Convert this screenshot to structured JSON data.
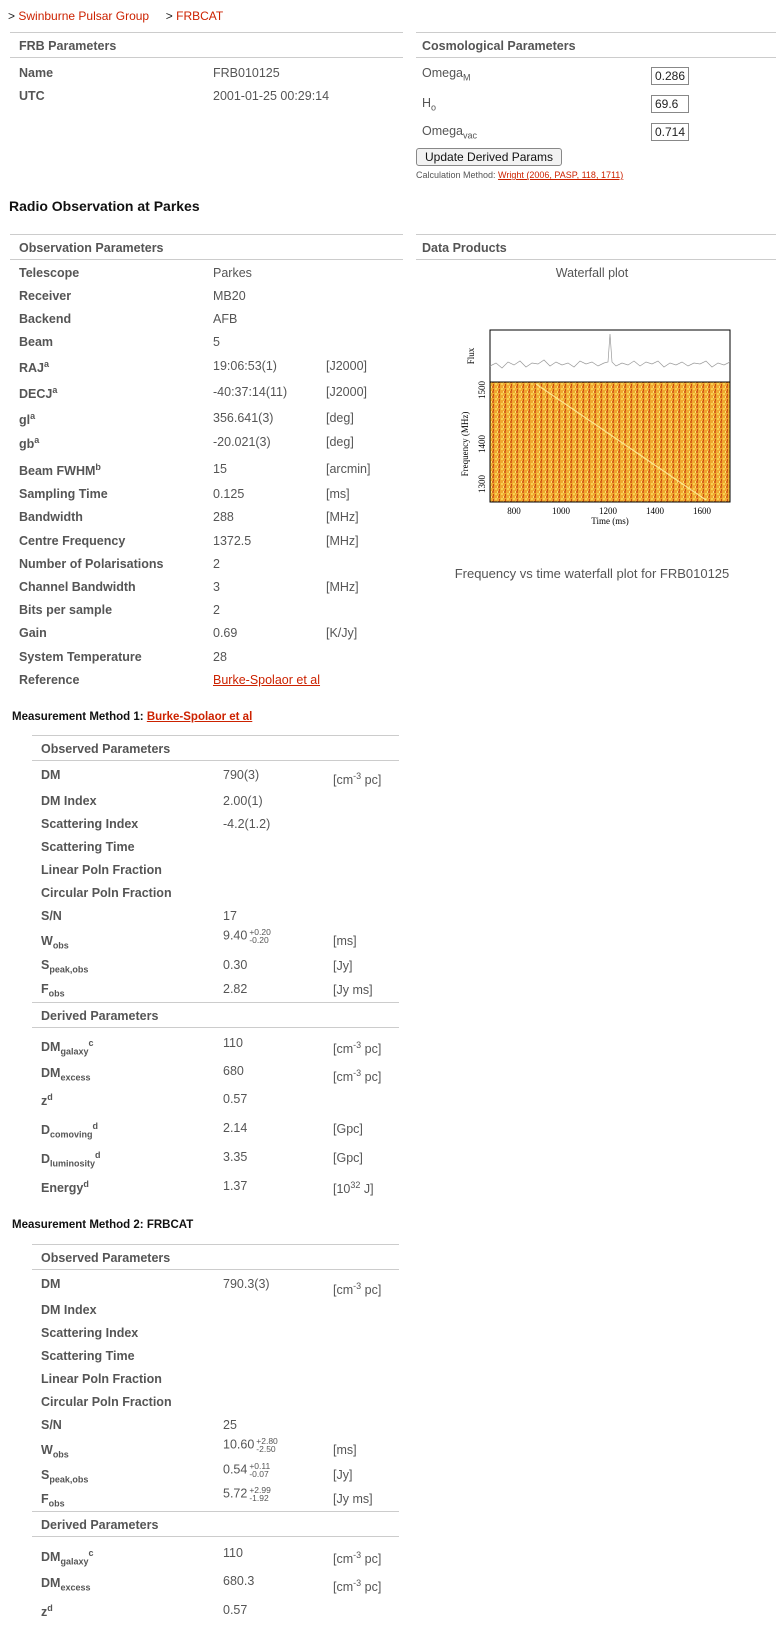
{
  "breadcrumb": {
    "sep": ">",
    "item1": "Swinburne Pulsar Group",
    "item2": "FRBCAT"
  },
  "frb": {
    "header": "FRB Parameters",
    "name_label": "Name",
    "name_value": "FRB010125",
    "utc_label": "UTC",
    "utc_value": "2001-01-25 00:29:14"
  },
  "cosmo": {
    "header": "Cosmological Parameters",
    "omega_m_label": "Omega",
    "omega_m_sub": "M",
    "omega_m_value": "0.286",
    "h0_label": "H",
    "h0_sub": "o",
    "h0_value": "69.6",
    "omega_vac_label": "Omega",
    "omega_vac_sub": "vac",
    "omega_vac_value": "0.714",
    "button": "Update Derived Params",
    "calc_prefix": "Calculation Method: ",
    "calc_link": "Wright (2006, PASP, 118, 1711)"
  },
  "radio_heading": "Radio Observation at Parkes",
  "obs": {
    "header": "Observation Parameters",
    "rows": [
      {
        "label": "Telescope",
        "sup": "",
        "value": "Parkes",
        "unit": ""
      },
      {
        "label": "Receiver",
        "sup": "",
        "value": "MB20",
        "unit": ""
      },
      {
        "label": "Backend",
        "sup": "",
        "value": "AFB",
        "unit": ""
      },
      {
        "label": "Beam",
        "sup": "",
        "value": "5",
        "unit": ""
      },
      {
        "label": "RAJ",
        "sup": "a",
        "value": "19:06:53(1)",
        "unit": "[J2000]"
      },
      {
        "label": "DECJ",
        "sup": "a",
        "value": "-40:37:14(11)",
        "unit": "[J2000]"
      },
      {
        "label": "gl",
        "sup": "a",
        "value": "356.641(3)",
        "unit": "[deg]"
      },
      {
        "label": "gb",
        "sup": "a",
        "value": "-20.021(3)",
        "unit": "[deg]"
      },
      {
        "label": "Beam FWHM",
        "sup": "b",
        "value": "15",
        "unit": "[arcmin]"
      },
      {
        "label": "Sampling Time",
        "sup": "",
        "value": "0.125",
        "unit": "[ms]"
      },
      {
        "label": "Bandwidth",
        "sup": "",
        "value": "288",
        "unit": "[MHz]"
      },
      {
        "label": "Centre Frequency",
        "sup": "",
        "value": "1372.5",
        "unit": "[MHz]"
      },
      {
        "label": "Number of Polarisations",
        "sup": "",
        "value": "2",
        "unit": ""
      },
      {
        "label": "Channel Bandwidth",
        "sup": "",
        "value": "3",
        "unit": "[MHz]"
      },
      {
        "label": "Bits per sample",
        "sup": "",
        "value": "2",
        "unit": ""
      },
      {
        "label": "Gain",
        "sup": "",
        "value": "0.69",
        "unit": "[K/Jy]"
      },
      {
        "label": "System Temperature",
        "sup": "",
        "value": "28",
        "unit": ""
      },
      {
        "label": "Reference",
        "sup": "",
        "value": "Burke-Spolaor et al",
        "unit": "",
        "link": true
      }
    ]
  },
  "dataproducts": {
    "header": "Data Products",
    "title": "Waterfall plot",
    "caption": "Frequency vs time waterfall plot for FRB010125",
    "flux_label": "Flux",
    "ylabel": "Frequency (MHz)",
    "xlabel": "Time (ms)",
    "yticks": [
      "1300",
      "1400",
      "1500"
    ],
    "xticks": [
      "800",
      "1000",
      "1200",
      "1400",
      "1600"
    ]
  },
  "mm1": {
    "heading_prefix": "Measurement Method 1: ",
    "heading_link": "Burke-Spolaor et al",
    "observed_header": "Observed Parameters",
    "derived_header": "Derived Parameters",
    "dm_label": "DM",
    "dm_value": "790(3)",
    "dmidx_label": "DM Index",
    "dmidx_value": "2.00(1)",
    "scatidx_label": "Scattering Index",
    "scatidx_value": "-4.2(1.2)",
    "scattime_label": "Scattering Time",
    "linpol_label": "Linear Poln Fraction",
    "circpol_label": "Circular Poln Fraction",
    "sn_label": "S/N",
    "sn_value": "17",
    "wobs_value": "9.40",
    "wobs_plus": "+0.20",
    "wobs_minus": "-0.20",
    "speak_value": "0.30",
    "fobs_value": "2.82",
    "dmgal_value": "110",
    "dmexc_value": "680",
    "z_value": "0.57",
    "dcom_value": "2.14",
    "dlum_value": "3.35",
    "energy_value": "1.37"
  },
  "mm2": {
    "heading": "Measurement Method 2: FRBCAT",
    "observed_header": "Observed Parameters",
    "derived_header": "Derived Parameters",
    "dm_label": "DM",
    "dm_value": "790.3(3)",
    "dmidx_label": "DM Index",
    "scatidx_label": "Scattering Index",
    "scattime_label": "Scattering Time",
    "linpol_label": "Linear Poln Fraction",
    "circpol_label": "Circular Poln Fraction",
    "sn_label": "S/N",
    "sn_value": "25",
    "wobs_value": "10.60",
    "wobs_plus": "+2.80",
    "wobs_minus": "-2.50",
    "speak_value": "0.54",
    "speak_plus": "+0.11",
    "speak_minus": "-0.07",
    "fobs_value": "5.72",
    "fobs_plus": "+2.99",
    "fobs_minus": "-1.92",
    "dmgal_value": "110",
    "dmexc_value": "680.3",
    "z_value": "0.57"
  },
  "labels": {
    "w": "W",
    "w_sub": "obs",
    "s": "S",
    "s_sub": "peak,obs",
    "f": "F",
    "f_sub": "obs",
    "dmgal": "DM",
    "dmgal_sub": "galaxy",
    "dmgal_sup": "c",
    "dmexc": "DM",
    "dmexc_sub": "excess",
    "z": "z",
    "z_sup": "d",
    "dcom": "D",
    "dcom_sub": "comoving",
    "dcom_sup": "d",
    "dlum": "D",
    "dlum_sub": "luminosity",
    "dlum_sup": "d",
    "energy": "Energy",
    "energy_sup": "d"
  },
  "units": {
    "dm_pre": "[cm",
    "dm_sup": "-3",
    "dm_post": " pc]",
    "ms": "[ms]",
    "jy": "[Jy]",
    "jyms": "[Jy ms]",
    "gpc": "[Gpc]",
    "energy_pre": "[10",
    "energy_sup": "32",
    "energy_post": " J]"
  }
}
